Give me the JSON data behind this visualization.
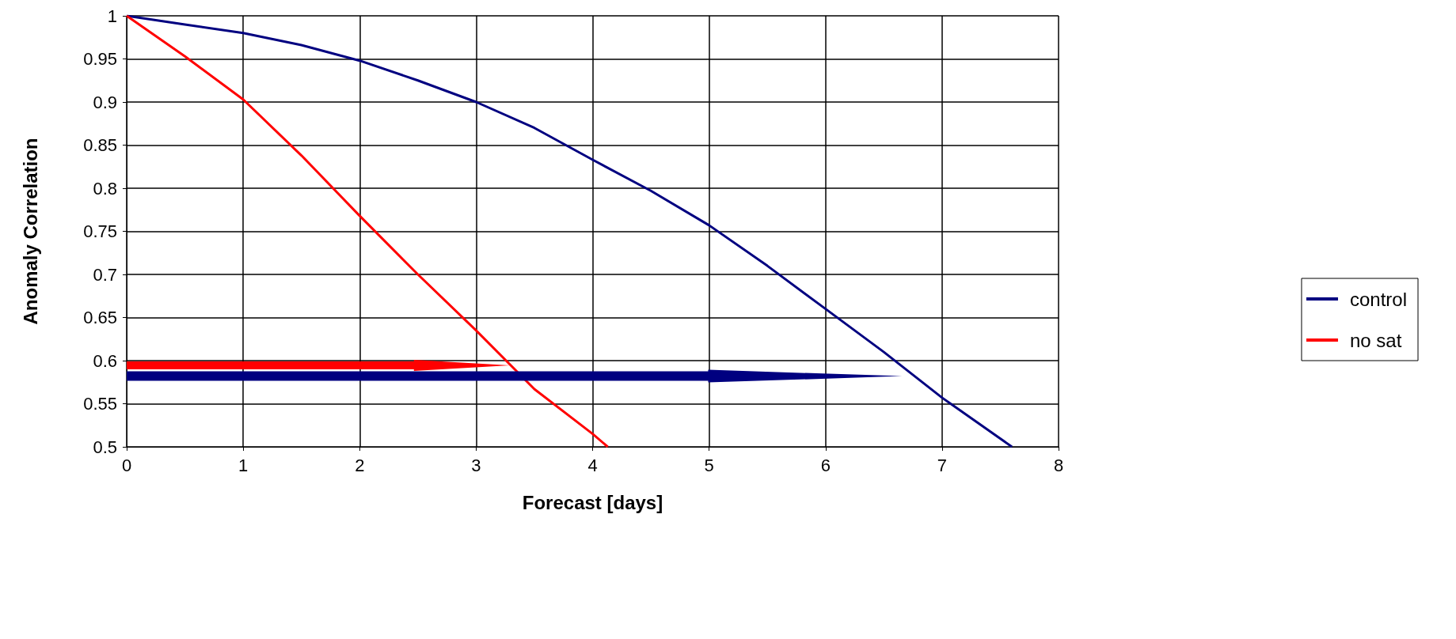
{
  "chart_data": {
    "type": "line",
    "xlabel": "Forecast [days]",
    "ylabel": "Anomaly Correlation",
    "xlim": [
      0,
      8
    ],
    "xticks": [
      0,
      1,
      2,
      3,
      4,
      5,
      6,
      7,
      8
    ],
    "ylim": [
      0.5,
      1
    ],
    "yticks": [
      0.5,
      0.55,
      0.6,
      0.65,
      0.7,
      0.75,
      0.8,
      0.85,
      0.9,
      0.95,
      1
    ],
    "grid": true,
    "legend": "right",
    "marker": "none",
    "line_style": "solid",
    "series": [
      {
        "name": "control",
        "color": "#000080",
        "x": [
          0,
          0.5,
          1,
          1.5,
          2,
          2.5,
          3,
          3.5,
          4,
          4.5,
          5,
          5.5,
          6,
          6.5,
          7,
          7.6
        ],
        "values": [
          1,
          0.99,
          0.98,
          0.966,
          0.948,
          0.925,
          0.9,
          0.87,
          0.833,
          0.797,
          0.757,
          0.71,
          0.66,
          0.61,
          0.557,
          0.5
        ]
      },
      {
        "name": "no sat",
        "color": "#ff0000",
        "x": [
          0,
          0.5,
          1,
          1.5,
          2,
          2.5,
          3,
          3.5,
          4,
          4.13
        ],
        "values": [
          1,
          0.953,
          0.903,
          0.838,
          0.768,
          0.7,
          0.635,
          0.567,
          0.515,
          0.5
        ]
      }
    ]
  }
}
